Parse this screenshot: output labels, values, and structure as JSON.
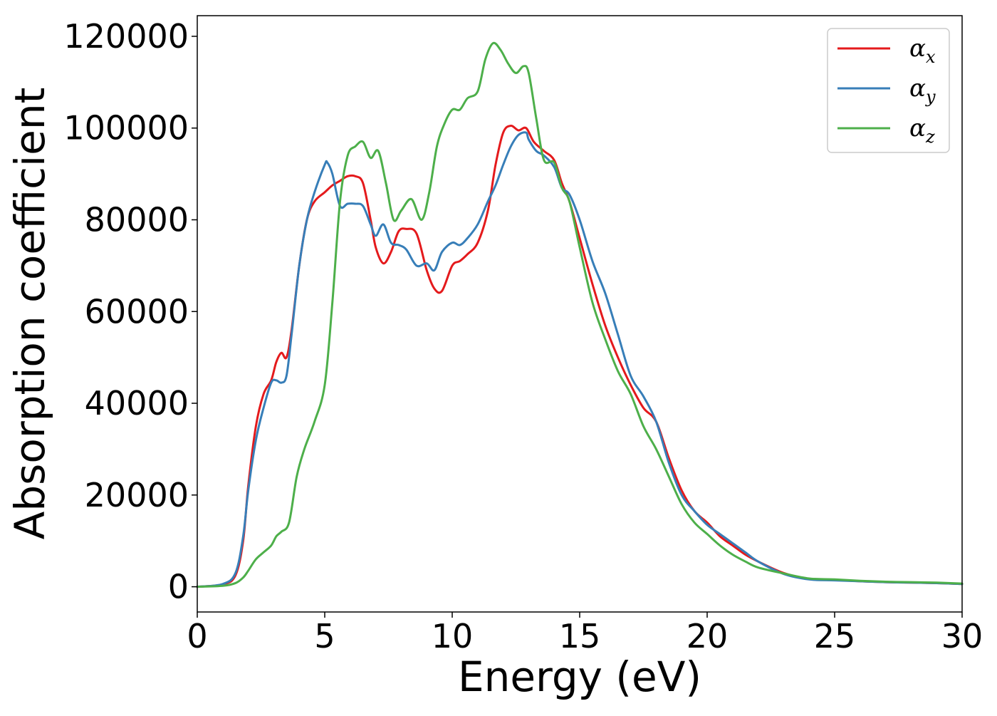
{
  "chart_data": {
    "type": "line",
    "title": "",
    "xlabel": "Energy (eV)",
    "ylabel": "Absorption coefficient",
    "xlim": [
      0,
      30
    ],
    "ylim": [
      -5500,
      124500
    ],
    "xticks": [
      0,
      5,
      10,
      15,
      20,
      25,
      30
    ],
    "yticks": [
      0,
      20000,
      40000,
      60000,
      80000,
      100000,
      120000
    ],
    "xtick_labels": [
      "0",
      "5",
      "10",
      "15",
      "20",
      "25",
      "30"
    ],
    "ytick_labels": [
      "0",
      "20000",
      "40000",
      "60000",
      "80000",
      "100000",
      "120000"
    ],
    "grid": false,
    "legend_position": "top-right",
    "series": [
      {
        "name": "α_x",
        "label_main": "α",
        "label_sub": "x",
        "color": "#e41a1c",
        "x": [
          0,
          1,
          1.5,
          1.8,
          2.0,
          2.3,
          2.6,
          2.9,
          3.1,
          3.3,
          3.5,
          3.7,
          4.0,
          4.3,
          4.6,
          5.0,
          5.3,
          5.6,
          5.9,
          6.2,
          6.5,
          6.8,
          7.0,
          7.3,
          7.6,
          7.9,
          8.2,
          8.6,
          9.0,
          9.3,
          9.6,
          10.0,
          10.3,
          10.6,
          11.0,
          11.4,
          11.7,
          12.0,
          12.3,
          12.6,
          12.9,
          13.2,
          13.6,
          14.0,
          14.3,
          14.6,
          15.0,
          15.5,
          16.0,
          16.5,
          17.0,
          17.5,
          18.0,
          18.5,
          19.0,
          19.5,
          20.0,
          20.5,
          21.0,
          21.5,
          22.0,
          23.0,
          24.0,
          25.0,
          26.0,
          27.0,
          28.0,
          29.0,
          30.0
        ],
        "values": [
          0,
          500,
          2500,
          10000,
          22000,
          35000,
          42000,
          45000,
          49000,
          51000,
          50000,
          56000,
          70000,
          80000,
          84000,
          86000,
          87500,
          88500,
          89500,
          89500,
          88000,
          80000,
          74000,
          70500,
          73000,
          77500,
          78000,
          77000,
          69000,
          65000,
          64500,
          70000,
          71000,
          72500,
          75000,
          82000,
          92000,
          99000,
          100500,
          99500,
          100000,
          97000,
          95000,
          93000,
          88000,
          84000,
          76000,
          66000,
          57000,
          50000,
          44000,
          39000,
          36000,
          28000,
          21000,
          16500,
          14000,
          11000,
          9000,
          7000,
          5500,
          3000,
          1700,
          1500,
          1200,
          1000,
          900,
          800,
          600
        ]
      },
      {
        "name": "α_y",
        "label_main": "α",
        "label_sub": "y",
        "color": "#377eb8",
        "x": [
          0,
          1,
          1.5,
          1.8,
          2.0,
          2.3,
          2.6,
          2.9,
          3.1,
          3.3,
          3.5,
          3.7,
          4.0,
          4.3,
          4.6,
          5.0,
          5.1,
          5.3,
          5.6,
          5.9,
          6.2,
          6.5,
          6.8,
          7.0,
          7.3,
          7.6,
          7.9,
          8.2,
          8.6,
          9.0,
          9.3,
          9.6,
          10.0,
          10.3,
          10.6,
          11.0,
          11.4,
          11.7,
          12.0,
          12.3,
          12.6,
          12.9,
          13.0,
          13.3,
          13.6,
          14.0,
          14.3,
          14.6,
          15.0,
          15.5,
          16.0,
          16.5,
          17.0,
          17.5,
          18.0,
          18.5,
          19.0,
          19.5,
          20.0,
          20.5,
          21.0,
          21.5,
          22.0,
          23.0,
          24.0,
          25.0,
          26.0,
          27.0,
          28.0,
          29.0,
          30.0
        ],
        "values": [
          0,
          600,
          3000,
          11000,
          21000,
          32000,
          39000,
          44500,
          45000,
          44500,
          46000,
          55000,
          70000,
          80000,
          86000,
          92000,
          92500,
          90000,
          83000,
          83500,
          83500,
          83000,
          79000,
          76500,
          79000,
          75000,
          74500,
          73500,
          70000,
          70500,
          69000,
          73000,
          75000,
          74500,
          76000,
          79000,
          84000,
          87500,
          92000,
          96000,
          98500,
          99000,
          97500,
          95000,
          94000,
          91500,
          87000,
          85500,
          80000,
          71000,
          64000,
          55000,
          46000,
          41500,
          36000,
          27000,
          20000,
          16500,
          13500,
          11500,
          9500,
          7500,
          5500,
          2800,
          1600,
          1400,
          1200,
          1000,
          900,
          800,
          600
        ]
      },
      {
        "name": "α_z",
        "label_main": "α",
        "label_sub": "z",
        "color": "#4daf4a",
        "x": [
          0,
          1,
          1.5,
          1.8,
          2.0,
          2.3,
          2.6,
          2.9,
          3.1,
          3.3,
          3.6,
          3.9,
          4.2,
          4.6,
          5.0,
          5.3,
          5.6,
          5.9,
          6.2,
          6.5,
          6.8,
          7.1,
          7.4,
          7.7,
          8.0,
          8.4,
          8.8,
          9.1,
          9.4,
          9.7,
          10.0,
          10.3,
          10.6,
          11.0,
          11.3,
          11.6,
          11.9,
          12.2,
          12.5,
          12.8,
          13.0,
          13.3,
          13.6,
          14.0,
          14.3,
          14.6,
          15.0,
          15.5,
          16.0,
          16.5,
          17.0,
          17.5,
          18.0,
          18.5,
          19.0,
          19.5,
          20.0,
          20.5,
          21.0,
          21.5,
          22.0,
          23.0,
          24.0,
          25.0,
          26.0,
          27.0,
          28.0,
          29.0,
          30.0
        ],
        "values": [
          0,
          200,
          800,
          2000,
          3500,
          6000,
          7500,
          9000,
          11000,
          12000,
          14000,
          24000,
          30000,
          36000,
          44000,
          62000,
          84000,
          94000,
          96000,
          97000,
          93500,
          95000,
          88000,
          80000,
          82000,
          84500,
          80000,
          86000,
          96000,
          101000,
          104000,
          104000,
          106500,
          108000,
          115000,
          118500,
          117000,
          114000,
          112000,
          113500,
          112000,
          102000,
          93000,
          92500,
          87000,
          84000,
          74000,
          62000,
          54000,
          47000,
          42000,
          35000,
          30000,
          24000,
          18000,
          14000,
          11500,
          9000,
          7000,
          5500,
          4200,
          2900,
          1800,
          1600,
          1300,
          1100,
          1000,
          900,
          700
        ]
      }
    ]
  }
}
